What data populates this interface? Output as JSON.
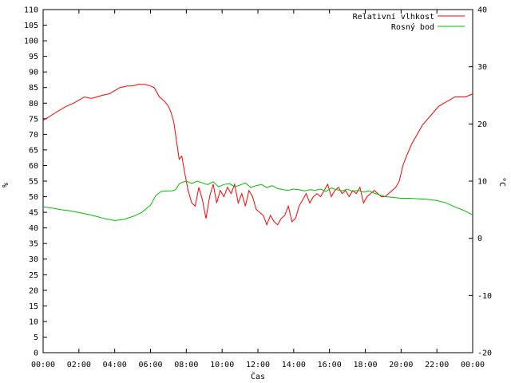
{
  "chart_data": {
    "type": "line",
    "xlabel": "Čas",
    "ylabel_left": "%",
    "ylabel_right": "°C",
    "ylim_left": [
      0,
      110
    ],
    "ylim_right": [
      -20,
      40
    ],
    "xlim_hours": [
      0,
      24
    ],
    "x_ticks": [
      "00:00",
      "02:00",
      "04:00",
      "06:00",
      "08:00",
      "10:00",
      "12:00",
      "14:00",
      "16:00",
      "18:00",
      "20:00",
      "22:00",
      "00:00"
    ],
    "y_left_ticks": [
      0,
      5,
      10,
      15,
      20,
      25,
      30,
      35,
      40,
      45,
      50,
      55,
      60,
      65,
      70,
      75,
      80,
      85,
      90,
      95,
      100,
      105,
      110
    ],
    "y_right_ticks": [
      -20,
      -10,
      0,
      10,
      20,
      30,
      40
    ],
    "grid": false,
    "legend_position": "top-right",
    "series": [
      {
        "name": "Relativní vlhkost",
        "color": "#ff0000",
        "axis": "left",
        "x": [
          0,
          0.3,
          0.7,
          1.0,
          1.3,
          1.7,
          2.0,
          2.3,
          2.7,
          3.0,
          3.3,
          3.7,
          4.0,
          4.3,
          4.7,
          5.0,
          5.3,
          5.7,
          6.0,
          6.2,
          6.5,
          6.8,
          7.0,
          7.15,
          7.3,
          7.45,
          7.6,
          7.75,
          7.9,
          8.1,
          8.3,
          8.5,
          8.7,
          8.9,
          9.1,
          9.3,
          9.5,
          9.7,
          9.9,
          10.1,
          10.3,
          10.5,
          10.7,
          10.9,
          11.1,
          11.3,
          11.5,
          11.7,
          11.9,
          12.1,
          12.3,
          12.5,
          12.7,
          12.9,
          13.1,
          13.3,
          13.5,
          13.7,
          13.9,
          14.1,
          14.3,
          14.5,
          14.7,
          14.9,
          15.1,
          15.3,
          15.5,
          15.7,
          15.9,
          16.1,
          16.3,
          16.5,
          16.7,
          16.9,
          17.1,
          17.3,
          17.5,
          17.7,
          17.9,
          18.1,
          18.3,
          18.5,
          18.7,
          18.9,
          19.1,
          19.3,
          19.5,
          19.7,
          19.9,
          20.1,
          20.3,
          20.6,
          20.9,
          21.2,
          21.5,
          21.8,
          22.1,
          22.4,
          22.7,
          23.0,
          23.3,
          23.6,
          24.0
        ],
        "values": [
          74.5,
          75.5,
          77,
          78,
          79,
          80,
          81,
          82,
          81.5,
          82,
          82.5,
          83,
          84,
          85,
          85.5,
          85.5,
          86,
          86,
          85.5,
          85,
          82,
          80.5,
          79,
          77,
          74,
          68,
          62,
          63,
          58,
          52,
          48,
          47,
          53,
          49,
          43,
          50,
          54,
          48,
          52,
          50,
          53,
          51,
          54,
          48,
          51,
          47,
          52,
          50,
          46,
          45,
          44,
          41,
          44,
          42,
          41,
          43,
          44,
          47,
          42,
          43,
          47,
          49,
          51,
          48,
          50,
          51,
          50,
          52,
          54,
          50,
          52,
          53,
          51,
          52,
          50,
          52,
          51,
          53,
          48,
          50,
          51,
          52,
          51,
          50,
          50,
          51,
          52,
          53,
          55,
          60,
          63,
          67,
          70,
          73,
          75,
          77,
          79,
          80,
          81,
          82,
          82,
          82,
          83
        ]
      },
      {
        "name": "Rosný bod",
        "color": "#00c000",
        "axis": "right",
        "x": [
          0,
          0.5,
          1.0,
          1.5,
          2.0,
          2.5,
          3.0,
          3.5,
          4.0,
          4.5,
          5.0,
          5.5,
          6.0,
          6.3,
          6.6,
          7.0,
          7.2,
          7.4,
          7.6,
          7.8,
          8.0,
          8.3,
          8.6,
          8.9,
          9.2,
          9.5,
          9.8,
          10.1,
          10.4,
          10.7,
          11.0,
          11.3,
          11.6,
          11.9,
          12.2,
          12.5,
          12.8,
          13.1,
          13.4,
          13.7,
          14.0,
          14.3,
          14.6,
          14.9,
          15.2,
          15.5,
          15.8,
          16.1,
          16.4,
          16.7,
          17.0,
          17.3,
          17.6,
          17.9,
          18.2,
          18.5,
          18.8,
          19.1,
          19.4,
          19.7,
          20.0,
          20.5,
          21.0,
          21.5,
          22.0,
          22.5,
          23.0,
          23.5,
          24.0
        ],
        "values": [
          5.5,
          5.3,
          5.0,
          4.8,
          4.5,
          4.2,
          3.8,
          3.4,
          3.1,
          3.3,
          3.8,
          4.5,
          5.8,
          7.5,
          8.2,
          8.3,
          8.3,
          8.5,
          9.5,
          9.8,
          10.0,
          9.6,
          10.0,
          9.7,
          9.4,
          9.9,
          9.0,
          9.4,
          9.6,
          9.0,
          9.3,
          9.7,
          8.9,
          9.2,
          9.4,
          8.9,
          9.2,
          8.7,
          8.5,
          8.4,
          8.6,
          8.5,
          8.3,
          8.5,
          8.4,
          8.6,
          8.2,
          8.8,
          8.5,
          8.3,
          8.6,
          8.2,
          8.4,
          8.1,
          8.3,
          7.9,
          7.6,
          7.3,
          7.2,
          7.1,
          7.0,
          7.0,
          6.9,
          6.8,
          6.6,
          6.2,
          5.5,
          4.9,
          4.1
        ]
      }
    ]
  }
}
